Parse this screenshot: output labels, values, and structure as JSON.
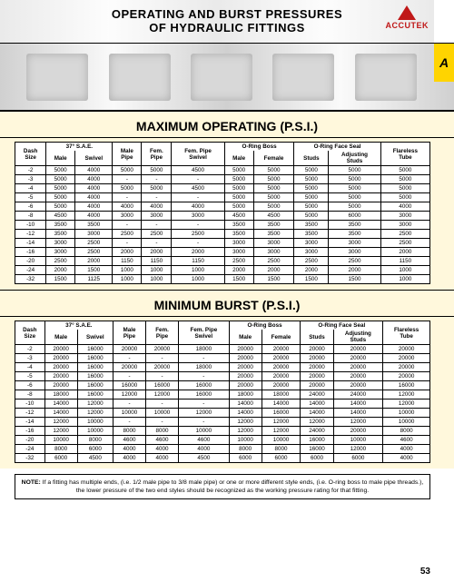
{
  "header": {
    "line1": "OPERATING AND BURST PRESSURES",
    "line2": "OF HYDRAULIC FITTINGS",
    "logo_text": "ACCUTEK",
    "tab_letter": "A"
  },
  "section_operating": "MAXIMUM OPERATING (P.S.I.)",
  "section_burst": "MINIMUM BURST (P.S.I.)",
  "columns": {
    "dash": "Dash\nSize",
    "sae": "37° S.A.E.",
    "male": "Male",
    "swivel": "Swivel",
    "male_pipe": "Male\nPipe",
    "fem_pipe": "Fem.\nPipe",
    "fem_pipe_swivel": "Fem. Pipe\nSwivel",
    "oring_boss": "O-Ring Boss",
    "female": "Female",
    "oring_face": "O-Ring Face Seal",
    "studs": "Studs",
    "adj_studs": "Adjusting\nStuds",
    "flareless": "Flareless\nTube"
  },
  "operating": {
    "rows": [
      [
        "-2",
        "5000",
        "4000",
        "5000",
        "5000",
        "4500",
        "5000",
        "5000",
        "5000",
        "5000",
        "5000"
      ],
      [
        "-3",
        "5000",
        "4000",
        "-",
        "-",
        "-",
        "5000",
        "5000",
        "5000",
        "5000",
        "5000"
      ],
      [
        "-4",
        "5000",
        "4000",
        "5000",
        "5000",
        "4500",
        "5000",
        "5000",
        "5000",
        "5000",
        "5000"
      ],
      [
        "-5",
        "5000",
        "4000",
        "-",
        "-",
        "-",
        "5000",
        "5000",
        "5000",
        "5000",
        "5000"
      ],
      [
        "-6",
        "5000",
        "4000",
        "4000",
        "4000",
        "4000",
        "5000",
        "5000",
        "5000",
        "5000",
        "4000"
      ],
      [
        "-8",
        "4500",
        "4000",
        "3000",
        "3000",
        "3000",
        "4500",
        "4500",
        "5000",
        "6000",
        "3000"
      ],
      [
        "-10",
        "3500",
        "3500",
        "-",
        "-",
        "-",
        "3500",
        "3500",
        "3500",
        "3500",
        "3000"
      ],
      [
        "-12",
        "3500",
        "3000",
        "2500",
        "2500",
        "2500",
        "3500",
        "3500",
        "3500",
        "3500",
        "2500"
      ],
      [
        "-14",
        "3000",
        "2500",
        "-",
        "-",
        "-",
        "3000",
        "3000",
        "3000",
        "3000",
        "2500"
      ],
      [
        "-16",
        "3000",
        "2500",
        "2000",
        "2000",
        "2000",
        "3000",
        "3000",
        "3000",
        "3000",
        "2000"
      ],
      [
        "-20",
        "2500",
        "2000",
        "1150",
        "1150",
        "1150",
        "2500",
        "2500",
        "2500",
        "2500",
        "1150"
      ],
      [
        "-24",
        "2000",
        "1500",
        "1000",
        "1000",
        "1000",
        "2000",
        "2000",
        "2000",
        "2000",
        "1000"
      ],
      [
        "-32",
        "1500",
        "1125",
        "1000",
        "1000",
        "1000",
        "1500",
        "1500",
        "1500",
        "1500",
        "1000"
      ]
    ]
  },
  "burst": {
    "rows": [
      [
        "-2",
        "20000",
        "16000",
        "20000",
        "20000",
        "18000",
        "20000",
        "20000",
        "20000",
        "20000",
        "20000"
      ],
      [
        "-3",
        "20000",
        "16000",
        "-",
        "-",
        "-",
        "20000",
        "20000",
        "20000",
        "20000",
        "20000"
      ],
      [
        "-4",
        "20000",
        "16000",
        "20000",
        "20000",
        "18000",
        "20000",
        "20000",
        "20000",
        "20000",
        "20000"
      ],
      [
        "-5",
        "20000",
        "16000",
        "-",
        "-",
        "-",
        "20000",
        "20000",
        "20000",
        "20000",
        "20000"
      ],
      [
        "-6",
        "20000",
        "16000",
        "16000",
        "16000",
        "16000",
        "20000",
        "20000",
        "20000",
        "20000",
        "16000"
      ],
      [
        "-8",
        "18000",
        "16000",
        "12000",
        "12000",
        "16000",
        "18000",
        "18000",
        "24000",
        "24000",
        "12000"
      ],
      [
        "-10",
        "14000",
        "12000",
        "-",
        "-",
        "-",
        "14000",
        "14000",
        "14000",
        "14000",
        "12000"
      ],
      [
        "-12",
        "14000",
        "12000",
        "10000",
        "10000",
        "12000",
        "14000",
        "16000",
        "14000",
        "14000",
        "10000"
      ],
      [
        "-14",
        "12000",
        "10000",
        "-",
        "-",
        "-",
        "12000",
        "12000",
        "12000",
        "12000",
        "10000"
      ],
      [
        "-16",
        "12000",
        "10000",
        "8000",
        "8000",
        "10000",
        "12000",
        "12000",
        "24000",
        "20000",
        "8000"
      ],
      [
        "-20",
        "10000",
        "8000",
        "4600",
        "4600",
        "4600",
        "10000",
        "10000",
        "16000",
        "10000",
        "4600"
      ],
      [
        "-24",
        "8000",
        "6000",
        "4000",
        "4000",
        "4000",
        "8000",
        "8000",
        "16000",
        "12000",
        "4000"
      ],
      [
        "-32",
        "6000",
        "4500",
        "4000",
        "4000",
        "4500",
        "6000",
        "6000",
        "6000",
        "6000",
        "4000"
      ]
    ]
  },
  "note": {
    "label": "NOTE:",
    "text": "If a fitting has multiple ends, (i.e. 1/2 male pipe to 3/8 male pipe) or one or more different style ends, (i.e. O-ring boss to male pipe threads.), the lower pressure of the two end styles should be recognized as the working pressure rating for that fitting."
  },
  "page_number": "53"
}
